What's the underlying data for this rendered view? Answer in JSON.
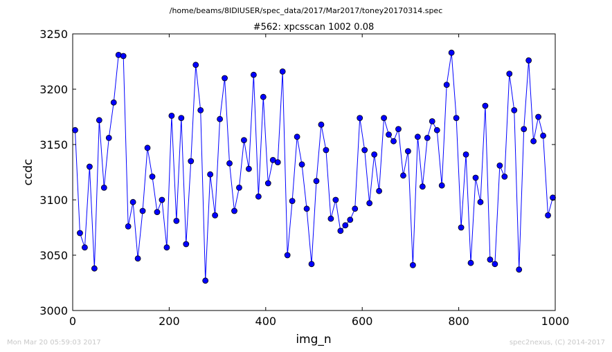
{
  "suptitle": "/home/beams/8IDIUSER/spec_data/2017/Mar2017/toney20170314.spec",
  "footer_left": "Mon Mar 20 05:59:03 2017",
  "footer_right": "spec2nexus, (C) 2014-2017",
  "chart_data": {
    "type": "line",
    "title": "#562: xpcsscan 1002 0.08",
    "xlabel": "img_n",
    "ylabel": "ccdc",
    "xlim": [
      0,
      1000
    ],
    "ylim": [
      3000,
      3250
    ],
    "xticks": [
      0,
      200,
      400,
      600,
      800,
      1000
    ],
    "yticks": [
      3000,
      3050,
      3100,
      3150,
      3200,
      3250
    ],
    "grid": false,
    "marker": "circle",
    "colors": {
      "line": "#0000ff",
      "marker_fill": "#0000ff",
      "marker_edge": "#000000"
    },
    "series": [
      {
        "x": [
          5,
          15,
          25,
          35,
          45,
          55,
          65,
          75,
          85,
          95,
          105,
          115,
          125,
          135,
          145,
          155,
          165,
          175,
          185,
          195,
          205,
          215,
          225,
          235,
          245,
          255,
          265,
          275,
          285,
          295,
          305,
          315,
          325,
          335,
          345,
          355,
          365,
          375,
          385,
          395,
          405,
          415,
          425,
          435,
          445,
          455,
          465,
          475,
          485,
          495,
          505,
          515,
          525,
          535,
          545,
          555,
          565,
          575,
          585,
          595,
          605,
          615,
          625,
          635,
          645,
          655,
          665,
          675,
          685,
          695,
          705,
          715,
          725,
          735,
          745,
          755,
          765,
          775,
          785,
          795,
          805,
          815,
          825,
          835,
          845,
          855,
          865,
          875,
          885,
          895,
          905,
          915,
          925,
          935,
          945,
          955,
          965,
          975,
          985,
          995
        ],
        "values": [
          3163,
          3070,
          3057,
          3130,
          3038,
          3172,
          3111,
          3156,
          3188,
          3231,
          3230,
          3076,
          3098,
          3047,
          3090,
          3147,
          3121,
          3089,
          3100,
          3057,
          3176,
          3081,
          3174,
          3060,
          3135,
          3222,
          3181,
          3027,
          3123,
          3086,
          3173,
          3210,
          3133,
          3090,
          3111,
          3154,
          3128,
          3213,
          3103,
          3193,
          3115,
          3136,
          3134,
          3216,
          3050,
          3099,
          3157,
          3132,
          3092,
          3042,
          3117,
          3168,
          3145,
          3083,
          3100,
          3072,
          3077,
          3082,
          3092,
          3174,
          3145,
          3097,
          3141,
          3108,
          3174,
          3159,
          3153,
          3164,
          3122,
          3144,
          3041,
          3157,
          3112,
          3156,
          3171,
          3163,
          3113,
          3204,
          3233,
          3174,
          3075,
          3141,
          3043,
          3120,
          3098,
          3185,
          3046,
          3042,
          3131,
          3121,
          3214,
          3181,
          3037,
          3164,
          3226,
          3153,
          3175,
          3158,
          3086,
          3102
        ]
      }
    ]
  }
}
